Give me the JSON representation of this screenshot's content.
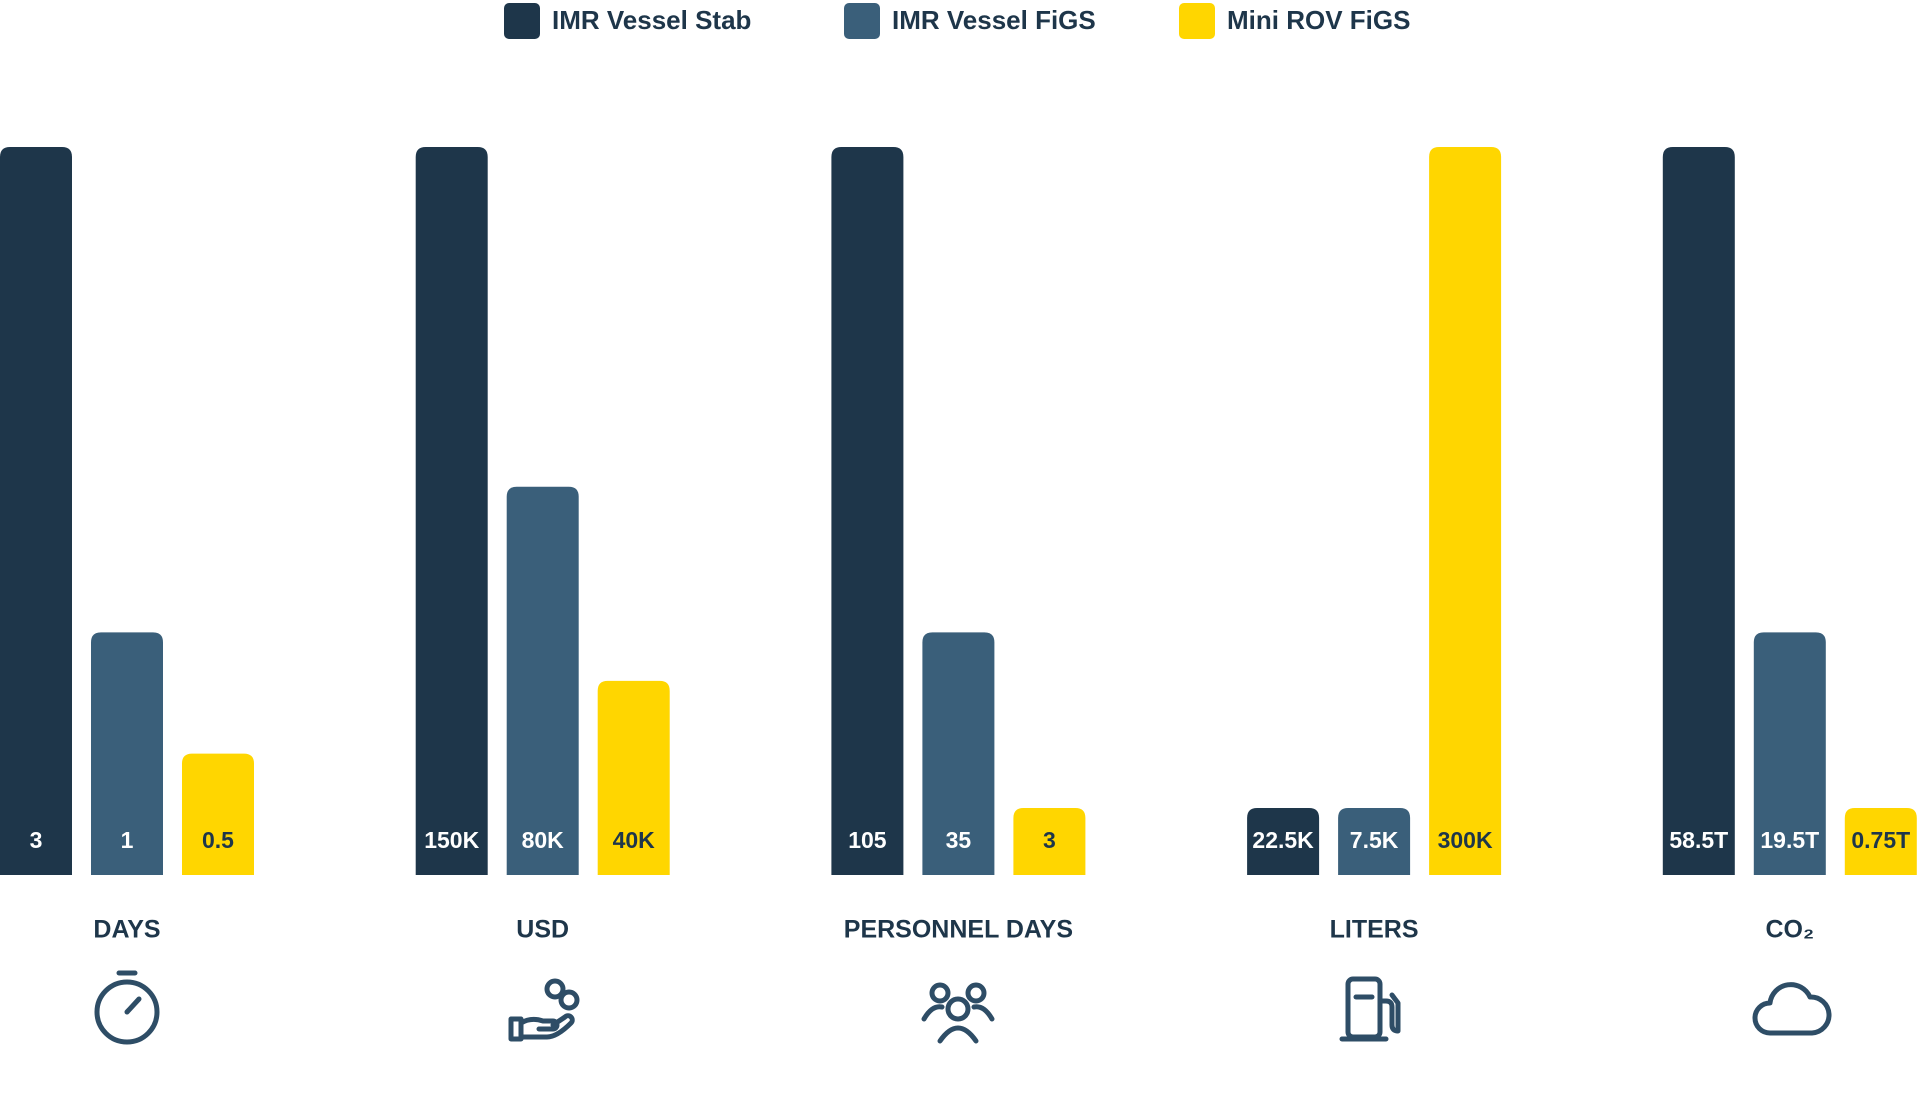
{
  "chart_data": {
    "type": "bar",
    "categories": [
      "DAYS",
      "USD",
      "PERSONNEL DAYS",
      "LITERS",
      "CO₂"
    ],
    "series": [
      {
        "name": "IMR Vessel Stab",
        "color": "#1e364a",
        "values": [
          3,
          150000,
          105,
          22500,
          58.5
        ],
        "value_labels": [
          "3",
          "150K",
          "105",
          "22.5K",
          "58.5T"
        ]
      },
      {
        "name": "IMR Vessel FiGS",
        "color": "#3a5f7a",
        "values": [
          1,
          80000,
          35,
          7500,
          19.5
        ],
        "value_labels": [
          "1",
          "80K",
          "35",
          "7.5K",
          "19.5T"
        ]
      },
      {
        "name": "Mini ROV FiGS",
        "color": "#ffd600",
        "values": [
          0.5,
          40000,
          3,
          300000,
          0.75
        ],
        "value_labels": [
          "0.5",
          "40K",
          "3",
          "300K",
          "0.75T"
        ]
      }
    ]
  }
}
